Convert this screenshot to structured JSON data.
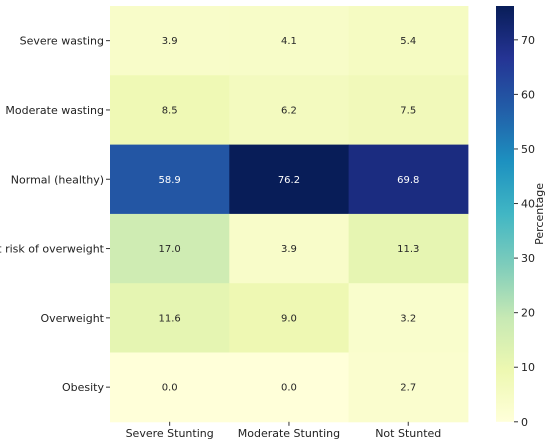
{
  "chart_data": {
    "type": "heatmap",
    "title": "",
    "xlabel": "",
    "ylabel": "",
    "x_categories": [
      "Severe Stunting",
      "Moderate Stunting",
      "Not Stunted"
    ],
    "y_categories": [
      "Severe wasting",
      "Moderate wasting",
      "Normal (healthy)",
      "At risk of overweight",
      "Overweight",
      "Obesity"
    ],
    "values": [
      [
        3.9,
        4.1,
        5.4
      ],
      [
        8.5,
        6.2,
        7.5
      ],
      [
        58.9,
        76.2,
        69.8
      ],
      [
        17.0,
        3.9,
        11.3
      ],
      [
        11.6,
        9.0,
        3.2
      ],
      [
        0.0,
        0.0,
        2.7
      ]
    ],
    "value_labels": [
      [
        "3.9",
        "4.1",
        "5.4"
      ],
      [
        "8.5",
        "6.2",
        "7.5"
      ],
      [
        "58.9",
        "76.2",
        "69.8"
      ],
      [
        "17.0",
        "3.9",
        "11.3"
      ],
      [
        "11.6",
        "9.0",
        "3.2"
      ],
      [
        "0.0",
        "0.0",
        "2.7"
      ]
    ],
    "colorbar": {
      "label": "Percentage",
      "min": 0,
      "max": 76.2,
      "ticks": [
        0,
        10,
        20,
        30,
        40,
        50,
        60,
        70
      ],
      "tick_labels": [
        "0",
        "10",
        "20",
        "30",
        "40",
        "50",
        "60",
        "70"
      ],
      "colormap": "YlGnBu"
    },
    "grid": false
  }
}
